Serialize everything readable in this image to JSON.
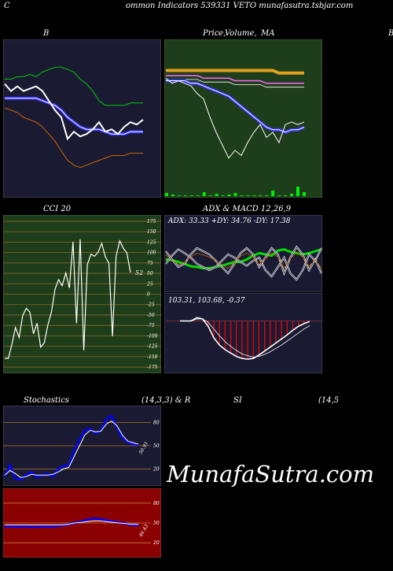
{
  "header": {
    "left_letter": "C",
    "title": "ommon  Indicators 539331 VETO munafasutra.tsbjar.com"
  },
  "labels": {
    "bb": "B",
    "price": "Price,",
    "volume": "Volume,",
    "ma": "MA",
    "right_edge": "B",
    "cci": "CCI 20",
    "adx_macd": "ADX  & MACD 12,26,9",
    "adx_values": "ADX: 33.33  +DY: 34.76  -DY: 17.38",
    "macd_values": "103.31,  103.68,  -0.37",
    "stoch": "Stochastics",
    "stoch_params": "(14,3,3) & R",
    "si": "SI",
    "rsi_params": "(14,5",
    "watermark": "MunafaSutra.com"
  },
  "colors": {
    "navy_bg": "#1a1a33",
    "green_bg": "#1e3d1a",
    "red_bg": "#8b0000",
    "orange_line": "#e0a020",
    "grid_line": "#8a6a20"
  },
  "chart_data": [
    {
      "type": "line",
      "panel": "Bollinger Bands",
      "series": [
        {
          "role": "upper",
          "color": "#00cc00",
          "values": [
            96,
            96,
            97,
            97,
            98,
            97,
            99,
            100,
            101,
            101,
            100,
            99,
            96,
            94,
            91,
            87,
            85,
            85,
            85,
            85,
            86,
            86,
            86
          ]
        },
        {
          "role": "middle",
          "color": "#3333ff",
          "values": [
            88,
            88,
            88,
            88,
            88,
            88,
            87,
            86,
            85,
            83,
            80,
            78,
            76,
            75,
            75,
            75,
            74,
            73,
            73,
            73,
            74,
            74,
            74
          ]
        },
        {
          "role": "lower",
          "color": "#cc6600",
          "values": [
            84,
            83,
            82,
            80,
            79,
            78,
            76,
            73,
            70,
            66,
            62,
            60,
            59,
            60,
            61,
            62,
            63,
            64,
            64,
            64,
            65,
            65,
            65
          ]
        },
        {
          "role": "price",
          "color": "#ffffff",
          "values": [
            94,
            91,
            93,
            91,
            92,
            93,
            91,
            87,
            83,
            80,
            71,
            74,
            72,
            73,
            75,
            78,
            74,
            75,
            73,
            76,
            78,
            77,
            79
          ]
        }
      ]
    },
    {
      "type": "line",
      "panel": "Price, Volume, MA",
      "series": [
        {
          "role": "ma-long",
          "color": "#e0a020",
          "values": [
            106,
            106,
            106,
            106,
            106,
            106,
            106,
            106,
            106,
            106,
            106,
            106,
            106,
            106,
            106,
            106,
            106,
            106,
            105,
            105,
            105,
            105,
            105
          ]
        },
        {
          "role": "ma-mid",
          "color": "#ff66ff",
          "values": [
            104,
            104,
            104,
            104,
            104,
            104,
            103,
            103,
            103,
            103,
            103,
            102,
            102,
            102,
            102,
            102,
            101,
            101,
            101,
            101,
            101,
            101,
            101
          ]
        },
        {
          "role": "ma-short",
          "color": "#3333ff",
          "values": [
            102,
            102,
            102,
            102,
            101,
            101,
            100,
            99,
            98,
            97,
            96,
            94,
            92,
            90,
            88,
            86,
            84,
            83,
            83,
            82,
            83,
            83,
            84
          ]
        },
        {
          "role": "price",
          "color": "#ffffff",
          "values": [
            103,
            101,
            102,
            101,
            100,
            97,
            95,
            88,
            82,
            77,
            72,
            75,
            73,
            78,
            82,
            85,
            80,
            82,
            78,
            85,
            86,
            85,
            86
          ]
        }
      ],
      "volume": [
        4,
        2,
        1,
        1,
        1,
        1,
        5,
        1,
        3,
        1,
        2,
        4,
        1,
        1,
        1,
        1,
        1,
        7,
        1,
        1,
        3,
        12,
        5
      ]
    },
    {
      "type": "line",
      "panel": "CCI 20",
      "yticks": [
        175,
        150,
        125,
        100,
        75,
        50,
        25,
        0,
        -25,
        -50,
        -75,
        -100,
        -125,
        -150,
        -175
      ],
      "ylim": [
        -190,
        190
      ],
      "last_value_label": "52",
      "values": [
        -154,
        -154,
        -121,
        -80,
        -104,
        -51,
        -34,
        -43,
        -95,
        -70,
        -127,
        -117,
        -74,
        -43,
        12,
        35,
        20,
        51,
        15,
        126,
        -70,
        132,
        -135,
        71,
        96,
        91,
        101,
        122,
        90,
        74,
        -101,
        91,
        128,
        110,
        99,
        52
      ]
    },
    {
      "type": "line",
      "panel": "ADX",
      "series": [
        {
          "role": "adx",
          "color": "#00dd00",
          "values": [
            52,
            51,
            48,
            45,
            41,
            40,
            38,
            38,
            40,
            42,
            45,
            48,
            48,
            52,
            58,
            62,
            60,
            58,
            66,
            68,
            64,
            62,
            60,
            62,
            65,
            68
          ]
        },
        {
          "role": "plus-dy",
          "color": "#ffffff",
          "values": [
            45,
            58,
            68,
            62,
            55,
            45,
            40,
            35,
            40,
            50,
            60,
            55,
            48,
            42,
            50,
            55,
            35,
            25,
            40,
            55,
            30,
            20,
            35,
            60,
            50,
            70
          ]
        },
        {
          "role": "minus-dy",
          "color": "#ffffff",
          "values": [
            65,
            52,
            40,
            45,
            60,
            70,
            65,
            60,
            50,
            40,
            30,
            45,
            62,
            70,
            60,
            40,
            55,
            70,
            60,
            30,
            55,
            72,
            60,
            35,
            52,
            30
          ]
        }
      ]
    },
    {
      "type": "bar",
      "panel": "MACD",
      "series": [
        {
          "role": "macd",
          "color": "#ffffff",
          "values": [
            0,
            0,
            0,
            0.5,
            0.3,
            -0.8,
            -2.5,
            -3.6,
            -4.3,
            -4.8,
            -5.3,
            -5.6,
            -5.7,
            -5.6,
            -5.1,
            -4.5,
            -3.9,
            -3.3,
            -2.7,
            -2.1,
            -1.4,
            -0.8,
            -0.4,
            -0.1
          ]
        },
        {
          "role": "signal",
          "color": "#ffffff",
          "values": [
            0,
            0,
            0,
            0.3,
            0.3,
            -0.2,
            -1.2,
            -2.2,
            -3.1,
            -3.8,
            -4.4,
            -4.9,
            -5.2,
            -5.4,
            -5.3,
            -5.0,
            -4.6,
            -4.1,
            -3.6,
            -3.0,
            -2.4,
            -1.8,
            -1.2,
            -0.7
          ]
        },
        {
          "role": "histogram",
          "color": "#ff0000",
          "values": [
            0,
            0,
            0,
            0.2,
            0,
            -0.6,
            -1.3,
            -1.4,
            -1.2,
            -1.0,
            -0.9,
            -0.7,
            -0.5,
            -0.2,
            0.2,
            0.5,
            0.7,
            0.8,
            0.9,
            0.9,
            1.0,
            1.0,
            0.8,
            0.6
          ]
        }
      ]
    },
    {
      "type": "line",
      "panel": "Stochastics",
      "yticks": [
        80,
        50,
        20
      ],
      "last_value_label": "50.91",
      "series": [
        {
          "role": "k",
          "color": "#0000ff",
          "values": [
            10,
            25,
            8,
            6,
            12,
            16,
            9,
            12,
            14,
            10,
            20,
            24,
            24,
            44,
            58,
            70,
            72,
            66,
            70,
            84,
            89,
            74,
            60,
            55,
            52,
            51
          ]
        },
        {
          "role": "d",
          "color": "#ffffff",
          "values": [
            12,
            18,
            14,
            9,
            10,
            13,
            12,
            12,
            12,
            13,
            16,
            20,
            22,
            36,
            50,
            64,
            70,
            68,
            69,
            78,
            82,
            76,
            64,
            56,
            54,
            52
          ]
        }
      ]
    },
    {
      "type": "line",
      "panel": "RSI",
      "yticks": [
        80,
        50,
        20
      ],
      "last_value_label": "46.43",
      "series": [
        {
          "role": "rsi",
          "color": "#0000ff",
          "values": [
            44,
            45,
            44,
            45,
            44,
            44,
            45,
            44,
            45,
            46,
            48,
            50,
            52,
            55,
            57,
            56,
            54,
            52,
            51,
            49,
            47,
            46
          ]
        },
        {
          "role": "rsi-smooth",
          "color": "#ffffff",
          "values": [
            47,
            47,
            47,
            47,
            47,
            47,
            47,
            47,
            47,
            47,
            48,
            50,
            51,
            52,
            53,
            53,
            52,
            51,
            50,
            49,
            48,
            48
          ]
        }
      ]
    }
  ]
}
